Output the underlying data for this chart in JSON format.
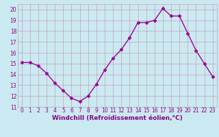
{
  "x": [
    0,
    1,
    2,
    3,
    4,
    5,
    6,
    7,
    8,
    9,
    10,
    11,
    12,
    13,
    14,
    15,
    16,
    17,
    18,
    19,
    20,
    21,
    22,
    23
  ],
  "y": [
    15.1,
    15.1,
    14.8,
    14.1,
    13.2,
    12.5,
    11.8,
    11.5,
    12.0,
    13.1,
    14.4,
    15.5,
    16.3,
    17.4,
    18.8,
    18.8,
    19.0,
    20.1,
    19.4,
    19.4,
    17.8,
    16.2,
    15.0,
    13.8
  ],
  "line_color": "#990099",
  "marker": "D",
  "markersize": 2.5,
  "linewidth": 1.0,
  "xlabel": "Windchill (Refroidissement éolien,°C)",
  "xlim": [
    -0.5,
    23.5
  ],
  "ylim": [
    11,
    20.5
  ],
  "yticks": [
    11,
    12,
    13,
    14,
    15,
    16,
    17,
    18,
    19,
    20
  ],
  "xticks": [
    0,
    1,
    2,
    3,
    4,
    5,
    6,
    7,
    8,
    9,
    10,
    11,
    12,
    13,
    14,
    15,
    16,
    17,
    18,
    19,
    20,
    21,
    22,
    23
  ],
  "bg_color": "#cbe9f0",
  "xlabel_fontsize": 6.5,
  "tick_fontsize": 5.5,
  "label_color": "#880088",
  "grid_color": "#c0a0c0"
}
